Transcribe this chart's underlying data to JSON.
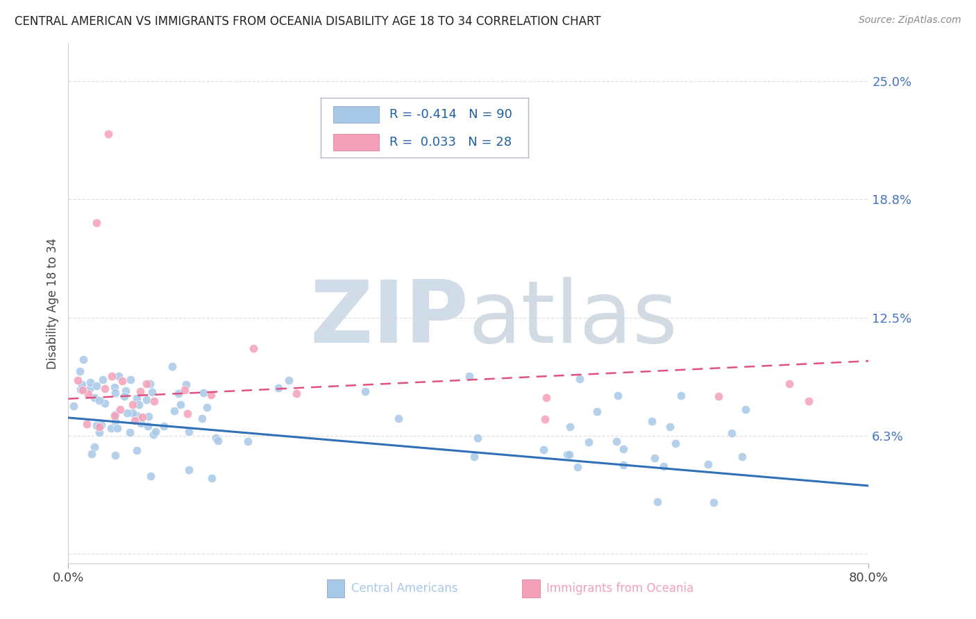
{
  "title": "CENTRAL AMERICAN VS IMMIGRANTS FROM OCEANIA DISABILITY AGE 18 TO 34 CORRELATION CHART",
  "source": "Source: ZipAtlas.com",
  "ylabel": "Disability Age 18 to 34",
  "ytick_values": [
    0.0,
    0.0625,
    0.125,
    0.1875,
    0.25
  ],
  "ytick_labels": [
    "",
    "6.3%",
    "12.5%",
    "18.8%",
    "25.0%"
  ],
  "xlim": [
    0.0,
    0.8
  ],
  "ylim": [
    -0.005,
    0.27
  ],
  "legend_line1_r": "R = -0.414",
  "legend_line1_n": "N = 90",
  "legend_line2_r": "R =  0.033",
  "legend_line2_n": "N = 28",
  "color_blue": "#a8c8e8",
  "color_pink": "#f4a0b8",
  "color_blue_line": "#3070b8",
  "color_pink_line": "#e05080",
  "watermark_color": "#d0dce8",
  "background_color": "#ffffff",
  "grid_color": "#d8d8d8",
  "spine_color": "#cccccc",
  "ytick_color": "#4472c4",
  "title_color": "#222222",
  "source_color": "#888888",
  "legend_edge_color": "#b0b8c8",
  "bottom_label_blue": "Central Americans",
  "bottom_label_pink": "Immigrants from Oceania"
}
